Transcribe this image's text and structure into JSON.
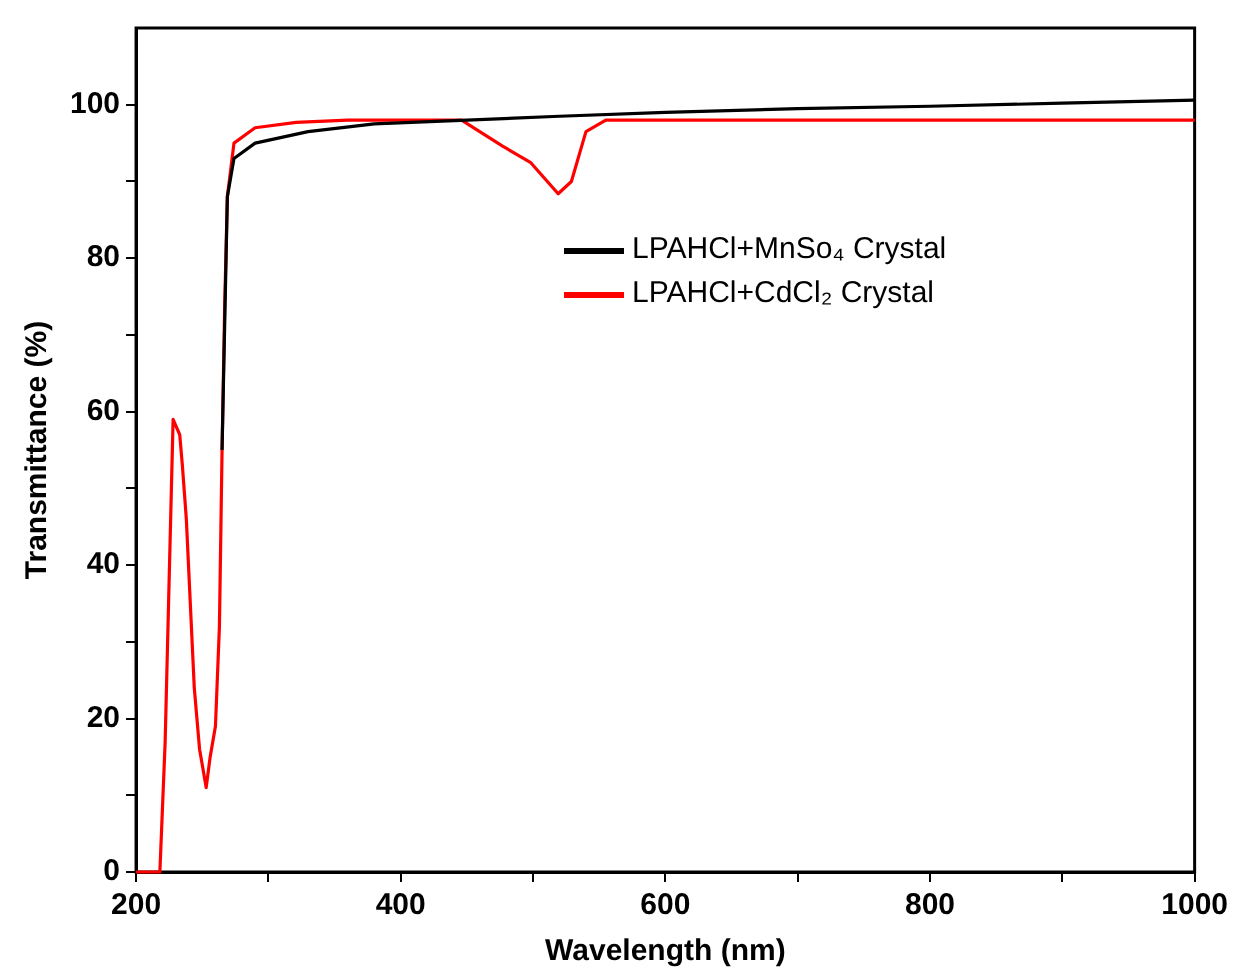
{
  "chart_data": {
    "type": "line",
    "xlabel": "Wavelength (nm)",
    "ylabel": "Transmittance (%)",
    "xlim": [
      200,
      1000
    ],
    "ylim": [
      0,
      110
    ],
    "xticks": [
      200,
      {
        "value": 300,
        "label": null
      },
      400,
      {
        "value": 500,
        "label": null
      },
      600,
      {
        "value": 700,
        "label": null
      },
      800,
      {
        "value": 900,
        "label": null
      },
      1000
    ],
    "yticks": [
      0,
      {
        "value": 10,
        "label": null
      },
      20,
      {
        "value": 30,
        "label": null
      },
      40,
      {
        "value": 50,
        "label": null
      },
      60,
      {
        "value": 70,
        "label": null
      },
      80,
      {
        "value": 90,
        "label": null
      },
      100
    ],
    "grid": false,
    "legend": "right",
    "marker": "none",
    "line_style": "solid",
    "series": [
      {
        "name": "LPAHCl+MnSo₄ Crystal",
        "color": "#000000",
        "x": [
          265,
          269,
          274,
          290,
          330,
          380,
          450,
          520,
          600,
          700,
          800,
          900,
          1000
        ],
        "values": [
          55,
          88,
          93,
          95,
          96.5,
          97.5,
          98,
          98.5,
          99,
          99.5,
          99.8,
          100.2,
          100.6
        ]
      },
      {
        "name": "LPAHCl+CdCl₂ Crystal",
        "color": "#ff0000",
        "x": [
          200,
          218,
          222,
          228,
          233,
          235,
          238,
          241,
          244,
          248,
          253,
          256,
          260,
          263,
          265,
          267,
          269,
          274,
          290,
          321,
          360,
          446,
          477,
          498,
          519,
          529,
          540,
          555,
          600,
          700,
          800,
          900,
          1000
        ],
        "values": [
          0,
          0,
          17,
          59,
          57,
          53,
          46,
          35,
          24,
          16,
          11,
          15,
          19,
          32,
          55,
          74,
          88,
          95,
          97,
          97.7,
          98,
          98,
          94.6,
          92.5,
          88.4,
          90,
          96.5,
          98,
          98,
          98,
          98,
          98,
          98
        ]
      }
    ]
  }
}
